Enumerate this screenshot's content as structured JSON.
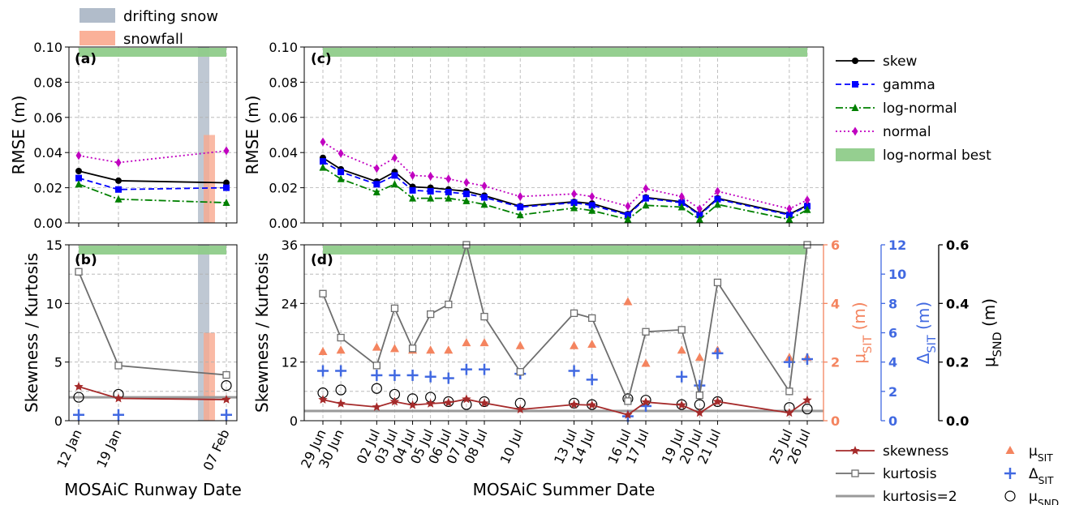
{
  "figure": {
    "top_legend": [
      {
        "label": "drifting snow",
        "color": "#a9b5c4"
      },
      {
        "label": "snowfall",
        "color": "#f9a98e"
      }
    ],
    "right_legend_top": [
      {
        "label": "skew",
        "style": "skew"
      },
      {
        "label": "gamma",
        "style": "gamma"
      },
      {
        "label": "log-normal",
        "style": "lognormal"
      },
      {
        "label": "normal",
        "style": "normal"
      },
      {
        "label": "log-normal best",
        "style": "patch"
      }
    ],
    "bottom_legend_col1": [
      {
        "label": "skewness",
        "style": "skewness"
      },
      {
        "label": "kurtosis",
        "style": "kurtosis"
      },
      {
        "label": "kurtosis=2",
        "style": "kurt2"
      }
    ],
    "bottom_legend_col2": [
      {
        "label": "μSIT",
        "main": "μ",
        "sub": "SIT",
        "style": "tri"
      },
      {
        "label": "ΔSIT",
        "main": "Δ",
        "sub": "SIT",
        "style": "plus"
      },
      {
        "label": "μSND",
        "main": "μ",
        "sub": "SND",
        "style": "circ"
      }
    ]
  },
  "chart_data": [
    {
      "panel": "(a)",
      "type": "line",
      "ylabel": "RMSE (m)",
      "ylim": [
        0,
        0.1
      ],
      "yticks": [
        "0.00",
        "0.02",
        "0.04",
        "0.06",
        "0.08",
        "0.10"
      ],
      "x_dates": [
        "12 Jan",
        "19 Jan",
        "07 Feb"
      ],
      "series": [
        {
          "name": "skew",
          "values": [
            0.0295,
            0.024,
            0.0228
          ]
        },
        {
          "name": "gamma",
          "values": [
            0.0255,
            0.019,
            0.02
          ]
        },
        {
          "name": "log-normal",
          "values": [
            0.022,
            0.0135,
            0.0115
          ]
        },
        {
          "name": "normal",
          "values": [
            0.0383,
            0.0343,
            0.041
          ]
        }
      ],
      "log_normal_best": [
        "12 Jan",
        "19 Jan",
        "07 Feb"
      ],
      "drifting_snow_span": [
        "02 Feb",
        "04 Feb"
      ],
      "snowfall_span": {
        "start": "03 Feb",
        "end": "05 Feb",
        "height": 0.05
      },
      "grid": true
    },
    {
      "panel": "(b)",
      "type": "line",
      "xlabel": "MOSAiC Runway Date",
      "ylabel": "Skewness / Kurtosis",
      "ylim": [
        0,
        15
      ],
      "yticks": [
        "0",
        "5",
        "10",
        "15"
      ],
      "x_dates": [
        "12 Jan",
        "19 Jan",
        "07 Feb"
      ],
      "series": [
        {
          "name": "skewness",
          "values": [
            2.9,
            1.9,
            1.8
          ]
        },
        {
          "name": "kurtosis",
          "values": [
            12.7,
            4.7,
            3.9
          ]
        }
      ],
      "kurtosis_reference": 2,
      "mu_SND": [
        0.08,
        0.09,
        0.12
      ],
      "delta_SIT": [
        0.4,
        0.4,
        0.4
      ],
      "grid": true
    },
    {
      "panel": "(c)",
      "type": "line",
      "ylabel": "RMSE (m)",
      "ylim": [
        0,
        0.1
      ],
      "yticks": [
        "0.00",
        "0.02",
        "0.04",
        "0.06",
        "0.08",
        "0.10"
      ],
      "x_dates": [
        "29 Jun",
        "30 Jun",
        "02 Jul",
        "03 Jul",
        "04 Jul",
        "05 Jul",
        "06 Jul",
        "07 Jul",
        "08 Jul",
        "10 Jul",
        "13 Jul",
        "14 Jul",
        "16 Jul",
        "17 Jul",
        "19 Jul",
        "20 Jul",
        "21 Jul",
        "25 Jul",
        "26 Jul"
      ],
      "series": [
        {
          "name": "skew",
          "values": [
            0.037,
            0.0305,
            0.0235,
            0.029,
            0.0205,
            0.02,
            0.019,
            0.018,
            0.0155,
            0.0095,
            0.012,
            0.011,
            0.005,
            0.0145,
            0.012,
            0.005,
            0.014,
            0.005,
            0.01
          ]
        },
        {
          "name": "gamma",
          "values": [
            0.035,
            0.029,
            0.022,
            0.027,
            0.0185,
            0.018,
            0.0175,
            0.0165,
            0.0145,
            0.009,
            0.0115,
            0.01,
            0.0045,
            0.014,
            0.0115,
            0.0045,
            0.0135,
            0.0045,
            0.0095
          ]
        },
        {
          "name": "log-normal",
          "values": [
            0.0315,
            0.025,
            0.0175,
            0.022,
            0.014,
            0.014,
            0.014,
            0.0125,
            0.0105,
            0.0045,
            0.0085,
            0.007,
            0.002,
            0.01,
            0.009,
            0.002,
            0.0105,
            0.002,
            0.0075
          ]
        },
        {
          "name": "normal",
          "values": [
            0.046,
            0.0395,
            0.031,
            0.037,
            0.027,
            0.0265,
            0.025,
            0.023,
            0.021,
            0.015,
            0.0165,
            0.015,
            0.0095,
            0.0195,
            0.015,
            0.008,
            0.018,
            0.008,
            0.013
          ]
        }
      ],
      "log_normal_best": [
        "29 Jun",
        "26 Jul"
      ],
      "grid": true
    },
    {
      "panel": "(d)",
      "type": "line",
      "xlabel": "MOSAiC Summer Date",
      "ylabel": "Skewness / Kurtosis",
      "ylim": [
        0,
        36
      ],
      "yticks": [
        "0",
        "12",
        "24",
        "36"
      ],
      "mu_SIT_axis": {
        "label_main": "μ",
        "label_sub": "SIT",
        "unit": " (m)",
        "ylim": [
          0,
          6
        ],
        "ticks": [
          "0",
          "2",
          "4",
          "6"
        ],
        "color": "#f4845f"
      },
      "delta_SIT_axis": {
        "label_main": "Δ",
        "label_sub": "SIT",
        "unit": " (m)",
        "ylim": [
          0,
          12
        ],
        "ticks": [
          "0",
          "2",
          "4",
          "6",
          "8",
          "10",
          "12"
        ],
        "color": "#4169e1"
      },
      "mu_SND_axis": {
        "label_main": "μ",
        "label_sub": "SND",
        "unit": " (m)",
        "ylim": [
          0,
          0.6
        ],
        "ticks": [
          "0.0",
          "0.2",
          "0.4",
          "0.6"
        ],
        "color": "#000000"
      },
      "x_dates": [
        "29 Jun",
        "30 Jun",
        "02 Jul",
        "03 Jul",
        "04 Jul",
        "05 Jul",
        "06 Jul",
        "07 Jul",
        "08 Jul",
        "10 Jul",
        "13 Jul",
        "14 Jul",
        "16 Jul",
        "17 Jul",
        "19 Jul",
        "20 Jul",
        "21 Jul",
        "25 Jul",
        "26 Jul"
      ],
      "series": [
        {
          "name": "skewness",
          "values": [
            4.3,
            3.5,
            2.8,
            3.9,
            3.2,
            3.5,
            3.7,
            4.4,
            3.6,
            2.3,
            3.3,
            3.2,
            1.2,
            3.8,
            3.2,
            1.6,
            3.9,
            1.6,
            4.2
          ]
        },
        {
          "name": "kurtosis",
          "values": [
            26.0,
            17.0,
            11.3,
            23.0,
            14.8,
            21.8,
            23.8,
            36.0,
            21.3,
            10.0,
            22.0,
            21.0,
            4.0,
            18.2,
            18.6,
            5.2,
            28.3,
            6.0,
            36.0
          ]
        },
        {
          "name": "μSIT",
          "values": [
            2.35,
            2.4,
            2.5,
            2.45,
            2.4,
            2.4,
            2.4,
            2.65,
            2.65,
            2.55,
            2.55,
            2.6,
            4.05,
            1.95,
            2.4,
            2.15,
            2.4,
            2.15,
            2.15
          ]
        },
        {
          "name": "ΔSIT",
          "values": [
            3.4,
            3.4,
            3.1,
            3.1,
            3.1,
            3.0,
            2.9,
            3.5,
            3.5,
            3.2,
            3.4,
            2.8,
            0.3,
            1.0,
            3.0,
            2.4,
            4.6,
            4.0,
            4.2
          ]
        },
        {
          "name": "μSND",
          "values": [
            0.095,
            0.105,
            0.11,
            0.09,
            0.075,
            0.08,
            0.065,
            0.055,
            0.065,
            0.06,
            0.06,
            0.055,
            0.075,
            0.07,
            0.055,
            0.055,
            0.065,
            0.045,
            0.04
          ]
        }
      ],
      "kurtosis_reference": 2,
      "log_normal_best": [
        "29 Jun",
        "26 Jul"
      ],
      "grid": true
    }
  ]
}
